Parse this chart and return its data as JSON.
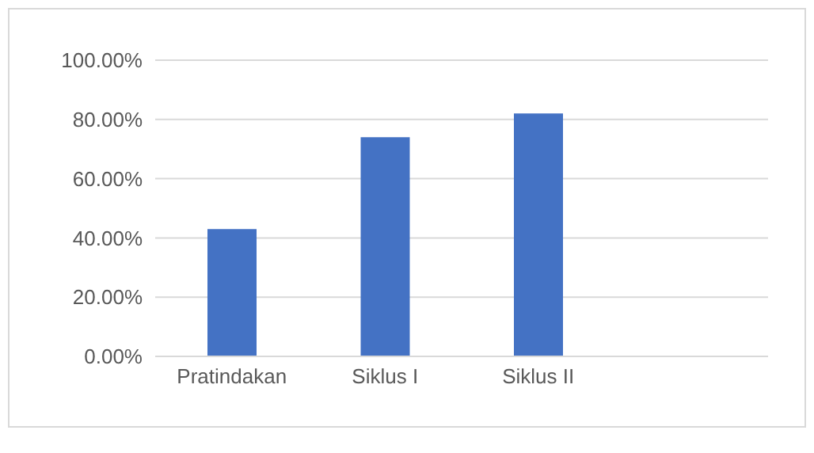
{
  "chart_data": {
    "type": "bar",
    "categories": [
      "Pratindakan",
      "Siklus I",
      "Siklus II",
      null
    ],
    "values": [
      43,
      74,
      82,
      null
    ],
    "color": "#4472c4",
    "ylim": [
      0,
      100
    ],
    "yticks": [
      {
        "value": 0,
        "label": "0.00%"
      },
      {
        "value": 20,
        "label": "20.00%"
      },
      {
        "value": 40,
        "label": "40.00%"
      },
      {
        "value": 60,
        "label": "60.00%"
      },
      {
        "value": 80,
        "label": "80.00%"
      },
      {
        "value": 100,
        "label": "100.00%"
      }
    ],
    "grid": "y"
  }
}
